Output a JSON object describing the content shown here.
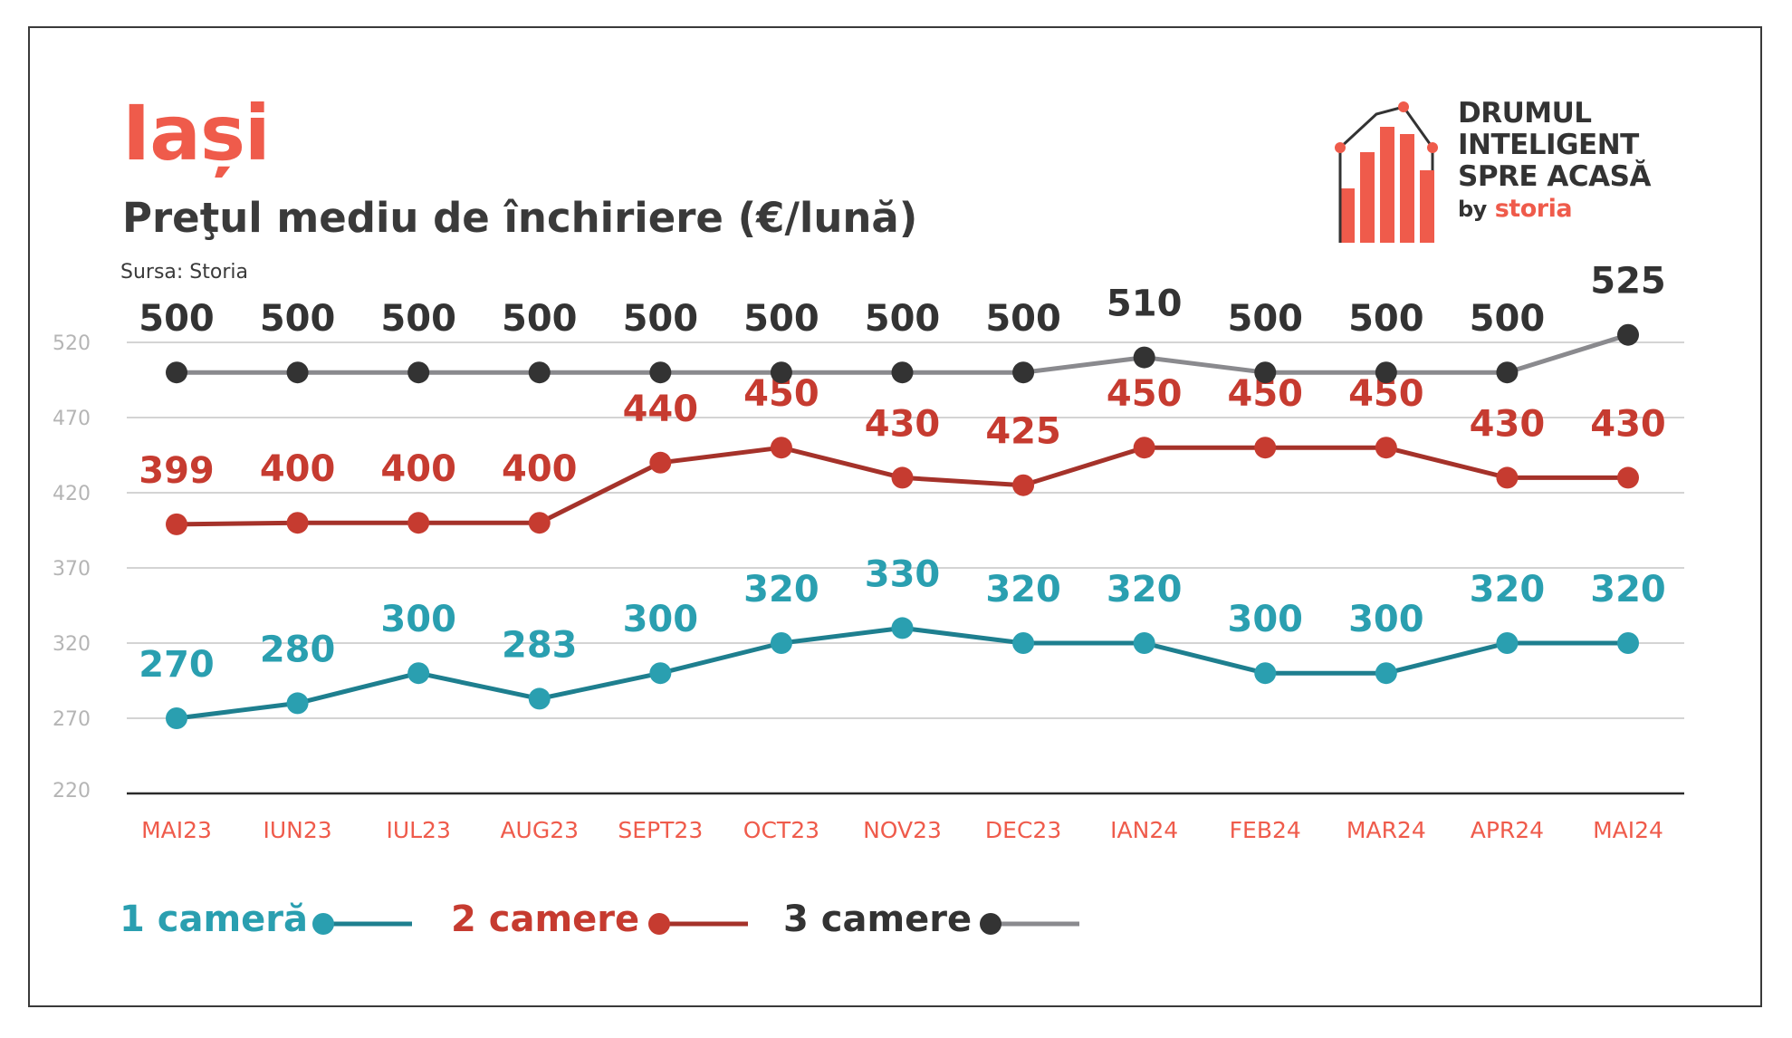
{
  "header": {
    "city": "Iași",
    "subtitle": "Preţul mediu de închiriere (€/lună)",
    "source": "Sursa: Storia"
  },
  "logo": {
    "line1": "DRUMUL",
    "line2": "INTELIGENT",
    "line3": "SPRE ACASĂ",
    "by": "by",
    "brand": "storia"
  },
  "colors": {
    "accent": "#ef5b4b",
    "text": "#3a3a3a",
    "series_1": "#2a9fb0",
    "series_2": "#c63b30",
    "series_3": "#333333",
    "series_3_line": "#8a8a8e",
    "series_1_line": "#1e7f8f",
    "series_2_line": "#a5322a",
    "grid": "#d4d4d4",
    "axis_tick": "#b5b5b5",
    "x_tick": "#ef5b4b"
  },
  "chart_data": {
    "type": "line",
    "title": "Preţul mediu de închiriere (€/lună)",
    "categories": [
      "MAI23",
      "IUN23",
      "IUL23",
      "AUG23",
      "SEPT23",
      "OCT23",
      "NOV23",
      "DEC23",
      "IAN24",
      "FEB24",
      "MAR24",
      "APR24",
      "MAI24"
    ],
    "y_ticks": [
      "520",
      "470",
      "420",
      "370",
      "320",
      "270",
      "220"
    ],
    "ylim": [
      220,
      520
    ],
    "grid": true,
    "legend_position": "bottom-left",
    "series": [
      {
        "name": "1 cameră",
        "values": [
          270,
          280,
          300,
          283,
          300,
          320,
          330,
          320,
          320,
          300,
          300,
          320,
          320
        ]
      },
      {
        "name": "2 camere",
        "values": [
          399,
          400,
          400,
          400,
          440,
          450,
          430,
          425,
          450,
          450,
          450,
          430,
          430
        ]
      },
      {
        "name": "3 camere",
        "values": [
          500,
          500,
          500,
          500,
          500,
          500,
          500,
          500,
          510,
          500,
          500,
          500,
          525
        ]
      }
    ]
  }
}
